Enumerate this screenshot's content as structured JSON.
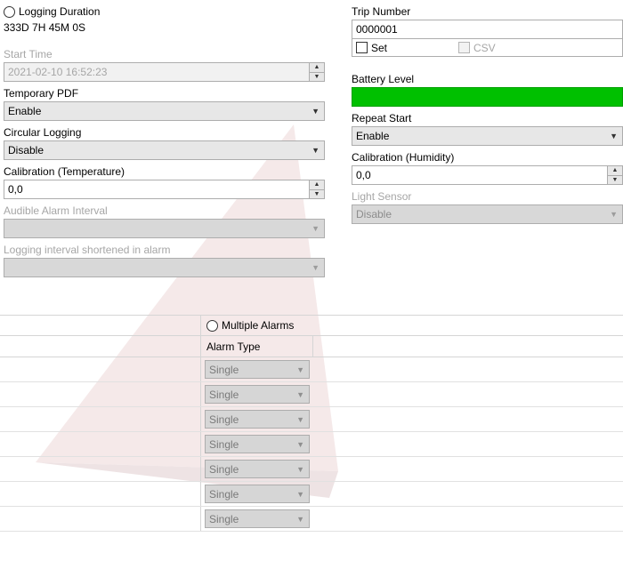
{
  "colors": {
    "battery_fill": "#00c000",
    "battery_border": "#00a000",
    "border_gray": "#adadad",
    "disabled_text": "#a6a6a6",
    "watermark": "#c9888c"
  },
  "left": {
    "logging_duration": {
      "label": "Logging Duration",
      "value": "333D 7H 45M 0S"
    },
    "start_time": {
      "label": "Start Time",
      "value": "2021-02-10 16:52:23"
    },
    "temporary_pdf": {
      "label": "Temporary PDF",
      "value": "Enable"
    },
    "circular_logging": {
      "label": "Circular Logging",
      "value": "Disable"
    },
    "calibration_temp": {
      "label": "Calibration (Temperature)",
      "value": "0,0"
    },
    "audible_alarm": {
      "label": "Audible Alarm Interval",
      "value": ""
    },
    "logging_interval_short": {
      "label": "Logging interval shortened in alarm",
      "value": ""
    }
  },
  "right": {
    "trip_number": {
      "label": "Trip Number",
      "value": "0000001"
    },
    "set_cb": {
      "label": "Set"
    },
    "csv_cb": {
      "label": "CSV"
    },
    "battery": {
      "label": "Battery Level"
    },
    "repeat_start": {
      "label": "Repeat Start",
      "value": "Enable"
    },
    "calibration_hum": {
      "label": "Calibration (Humidity)",
      "value": "0,0"
    },
    "light_sensor": {
      "label": "Light Sensor",
      "value": "Disable"
    }
  },
  "alarms": {
    "header": "Multiple Alarms",
    "type_header": "Alarm Type",
    "rows": [
      {
        "type": "Single"
      },
      {
        "type": "Single"
      },
      {
        "type": "Single"
      },
      {
        "type": "Single"
      },
      {
        "type": "Single"
      },
      {
        "type": "Single"
      },
      {
        "type": "Single"
      }
    ]
  }
}
